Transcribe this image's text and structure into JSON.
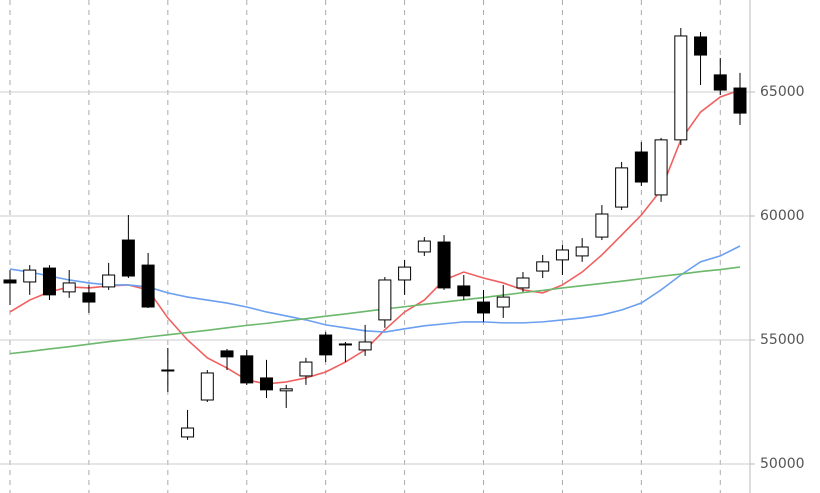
{
  "chart_data": {
    "type": "candlestick",
    "categories": [
      null,
      null,
      null,
      null,
      null,
      null,
      null,
      null,
      null,
      null,
      null,
      null,
      null,
      null,
      null,
      null,
      null,
      null,
      null,
      null,
      null,
      null,
      null,
      null,
      null,
      null,
      null,
      null,
      null,
      null,
      null,
      null,
      null,
      null,
      null,
      null,
      null,
      null
    ],
    "open": [
      57420,
      57340,
      57900,
      56940,
      56900,
      57140,
      59030,
      58020,
      53790,
      51090,
      52580,
      54560,
      54360,
      53470,
      52950,
      53550,
      55200,
      54800,
      54600,
      55810,
      57420,
      58550,
      58950,
      57180,
      56530,
      56330,
      57100,
      57780,
      58230,
      58390,
      59150,
      60360,
      62580,
      60850,
      63070,
      67220,
      65690,
      65160
    ],
    "high": [
      57820,
      58020,
      58020,
      57820,
      57220,
      58110,
      60040,
      58510,
      54680,
      52180,
      53790,
      54640,
      54600,
      54200,
      53190,
      54280,
      55320,
      54920,
      55610,
      57540,
      58230,
      59150,
      59230,
      57620,
      57020,
      57220,
      57740,
      58430,
      58830,
      59110,
      60440,
      62180,
      62980,
      63150,
      67580,
      67420,
      66370,
      65770
    ],
    "low": [
      56410,
      56820,
      56610,
      56700,
      56090,
      57020,
      57500,
      56290,
      52900,
      50970,
      52500,
      53790,
      53190,
      52660,
      52260,
      53190,
      54110,
      54110,
      54360,
      55490,
      56820,
      58390,
      57020,
      56610,
      55730,
      55890,
      56940,
      57500,
      57620,
      58150,
      59030,
      60240,
      61210,
      60570,
      62860,
      65280,
      64880,
      63670
    ],
    "close": [
      57300,
      57820,
      56820,
      57300,
      56530,
      57620,
      57580,
      56330,
      53750,
      51450,
      53670,
      54320,
      53270,
      52990,
      53030,
      54110,
      54400,
      54840,
      54920,
      57420,
      57940,
      58990,
      57100,
      56780,
      56090,
      56730,
      57500,
      58150,
      58630,
      58750,
      60080,
      61940,
      61370,
      63070,
      67260,
      66490,
      65080,
      64150
    ],
    "up_color": "#ffffff",
    "down_color": "#000000",
    "series": [
      {
        "color": "#f06060",
        "values": [
          56130,
          56610,
          56940,
          57140,
          57100,
          57180,
          57220,
          57020,
          55890,
          55000,
          54280,
          53870,
          53390,
          53230,
          53310,
          53470,
          53710,
          54110,
          54600,
          55410,
          56130,
          56610,
          57420,
          57740,
          57500,
          57300,
          57020,
          56900,
          57220,
          57740,
          58430,
          59230,
          60040,
          61050,
          63070,
          64190,
          64800,
          65080
        ]
      },
      {
        "color": "#6b9ff0",
        "values": [
          57860,
          57740,
          57580,
          57420,
          57300,
          57220,
          57220,
          57140,
          56900,
          56730,
          56610,
          56490,
          56330,
          56130,
          55970,
          55810,
          55610,
          55490,
          55370,
          55320,
          55450,
          55570,
          55650,
          55730,
          55730,
          55690,
          55690,
          55730,
          55810,
          55890,
          56010,
          56210,
          56490,
          57020,
          57620,
          58150,
          58390,
          58790
        ]
      },
      {
        "color": "#6cb86c",
        "values": [
          54450,
          54540,
          54640,
          54730,
          54830,
          54930,
          55020,
          55120,
          55210,
          55300,
          55390,
          55490,
          55590,
          55670,
          55770,
          55860,
          55960,
          56050,
          56150,
          56250,
          56340,
          56440,
          56530,
          56620,
          56710,
          56810,
          56910,
          57000,
          57100,
          57190,
          57280,
          57370,
          57470,
          57570,
          57660,
          57760,
          57840,
          57940
        ]
      }
    ],
    "ylim": [
      48830,
      68710
    ],
    "yticks": [
      50000,
      55000,
      60000,
      65000
    ],
    "grid": true
  }
}
